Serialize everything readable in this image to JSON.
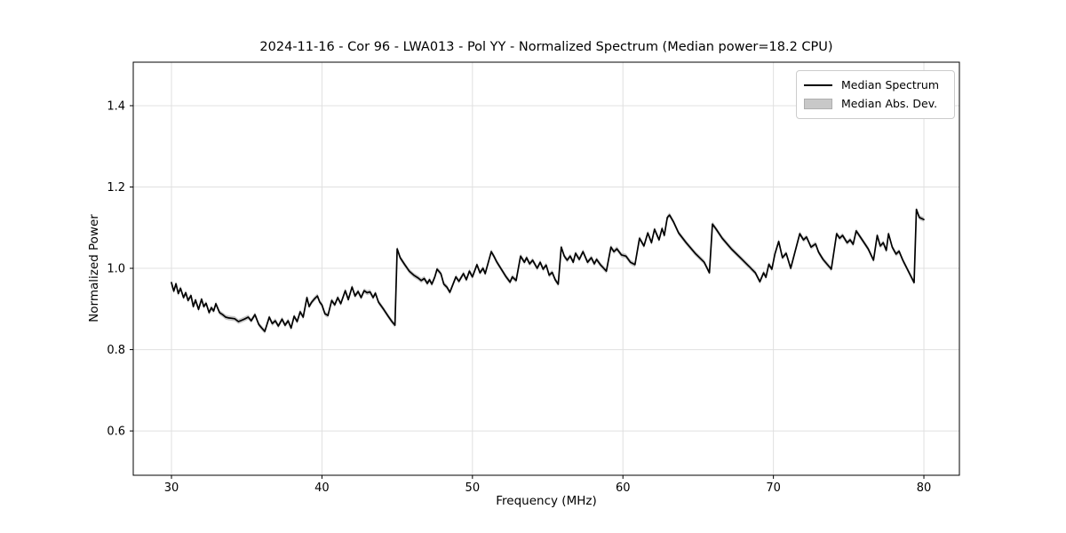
{
  "figure": {
    "title": "2024-11-16 - Cor 96 - LWA013 - Pol YY - Normalized Spectrum (Median power=18.2 CPU)",
    "background": "#ffffff"
  },
  "chart_data": {
    "type": "line",
    "title": "2024-11-16 - Cor 96 - LWA013 - Pol YY - Normalized Spectrum (Median power=18.2 CPU)",
    "xlabel": "Frequency (MHz)",
    "ylabel": "Normalized Power",
    "xlim": [
      27.46,
      82.36
    ],
    "ylim": [
      0.491,
      1.507
    ],
    "xtick_values": [
      30,
      40,
      50,
      60,
      70,
      80
    ],
    "xtick_labels": [
      "30",
      "40",
      "50",
      "60",
      "70",
      "80"
    ],
    "ytick_values": [
      0.6,
      0.8,
      1.0,
      1.2,
      1.4
    ],
    "ytick_labels": [
      "0.6",
      "0.8",
      "1.0",
      "1.2",
      "1.4"
    ],
    "grid": true,
    "grid_color": "#e0e0e0",
    "spine_color": "#000000",
    "line_color": "#000000",
    "band_color": "#c8c8c8",
    "band_halfwidth": 0.006,
    "legend_position": "top-right",
    "legend": [
      {
        "label": "Median Spectrum",
        "type": "line",
        "color": "#000000"
      },
      {
        "label": "Median Abs. Dev.",
        "type": "patch",
        "color": "#c8c8c8"
      }
    ],
    "series": [
      {
        "name": "Median Spectrum",
        "points": [
          [
            30.0,
            0.965
          ],
          [
            30.15,
            0.944
          ],
          [
            30.3,
            0.962
          ],
          [
            30.45,
            0.938
          ],
          [
            30.6,
            0.951
          ],
          [
            30.8,
            0.928
          ],
          [
            30.95,
            0.94
          ],
          [
            31.1,
            0.921
          ],
          [
            31.3,
            0.933
          ],
          [
            31.45,
            0.906
          ],
          [
            31.6,
            0.922
          ],
          [
            31.8,
            0.899
          ],
          [
            32.0,
            0.924
          ],
          [
            32.15,
            0.906
          ],
          [
            32.3,
            0.914
          ],
          [
            32.5,
            0.891
          ],
          [
            32.65,
            0.903
          ],
          [
            32.8,
            0.895
          ],
          [
            32.95,
            0.913
          ],
          [
            33.2,
            0.891
          ],
          [
            33.4,
            0.886
          ],
          [
            33.6,
            0.88
          ],
          [
            33.8,
            0.878
          ],
          [
            34.0,
            0.877
          ],
          [
            34.2,
            0.876
          ],
          [
            34.45,
            0.869
          ],
          [
            34.65,
            0.872
          ],
          [
            34.9,
            0.876
          ],
          [
            35.1,
            0.88
          ],
          [
            35.3,
            0.871
          ],
          [
            35.55,
            0.886
          ],
          [
            35.8,
            0.862
          ],
          [
            36.0,
            0.853
          ],
          [
            36.2,
            0.845
          ],
          [
            36.5,
            0.88
          ],
          [
            36.7,
            0.864
          ],
          [
            36.9,
            0.871
          ],
          [
            37.1,
            0.858
          ],
          [
            37.35,
            0.875
          ],
          [
            37.55,
            0.86
          ],
          [
            37.75,
            0.871
          ],
          [
            37.95,
            0.853
          ],
          [
            38.15,
            0.882
          ],
          [
            38.35,
            0.869
          ],
          [
            38.55,
            0.893
          ],
          [
            38.75,
            0.88
          ],
          [
            39.0,
            0.928
          ],
          [
            39.15,
            0.906
          ],
          [
            39.3,
            0.916
          ],
          [
            39.5,
            0.925
          ],
          [
            39.7,
            0.932
          ],
          [
            39.85,
            0.917
          ],
          [
            40.0,
            0.91
          ],
          [
            40.2,
            0.888
          ],
          [
            40.4,
            0.884
          ],
          [
            40.65,
            0.921
          ],
          [
            40.85,
            0.91
          ],
          [
            41.05,
            0.928
          ],
          [
            41.25,
            0.913
          ],
          [
            41.55,
            0.945
          ],
          [
            41.75,
            0.923
          ],
          [
            42.0,
            0.954
          ],
          [
            42.2,
            0.932
          ],
          [
            42.4,
            0.943
          ],
          [
            42.6,
            0.928
          ],
          [
            42.8,
            0.945
          ],
          [
            43.0,
            0.94
          ],
          [
            43.2,
            0.942
          ],
          [
            43.4,
            0.928
          ],
          [
            43.55,
            0.939
          ],
          [
            43.75,
            0.917
          ],
          [
            44.1,
            0.899
          ],
          [
            44.4,
            0.882
          ],
          [
            44.65,
            0.869
          ],
          [
            44.85,
            0.86
          ],
          [
            45.0,
            1.048
          ],
          [
            45.2,
            1.026
          ],
          [
            45.5,
            1.009
          ],
          [
            45.8,
            0.993
          ],
          [
            46.1,
            0.983
          ],
          [
            46.4,
            0.976
          ],
          [
            46.6,
            0.97
          ],
          [
            46.8,
            0.975
          ],
          [
            47.0,
            0.963
          ],
          [
            47.15,
            0.972
          ],
          [
            47.3,
            0.961
          ],
          [
            47.5,
            0.979
          ],
          [
            47.65,
            0.998
          ],
          [
            47.9,
            0.987
          ],
          [
            48.1,
            0.961
          ],
          [
            48.3,
            0.954
          ],
          [
            48.5,
            0.941
          ],
          [
            48.9,
            0.979
          ],
          [
            49.1,
            0.968
          ],
          [
            49.4,
            0.987
          ],
          [
            49.6,
            0.972
          ],
          [
            49.8,
            0.993
          ],
          [
            50.0,
            0.979
          ],
          [
            50.3,
            1.009
          ],
          [
            50.5,
            0.989
          ],
          [
            50.7,
            1.0
          ],
          [
            50.85,
            0.987
          ],
          [
            51.25,
            1.041
          ],
          [
            51.45,
            1.028
          ],
          [
            51.6,
            1.017
          ],
          [
            51.8,
            1.005
          ],
          [
            52.0,
            0.993
          ],
          [
            52.2,
            0.981
          ],
          [
            52.5,
            0.966
          ],
          [
            52.65,
            0.979
          ],
          [
            52.9,
            0.97
          ],
          [
            53.2,
            1.03
          ],
          [
            53.45,
            1.015
          ],
          [
            53.6,
            1.026
          ],
          [
            53.8,
            1.011
          ],
          [
            54.0,
            1.02
          ],
          [
            54.3,
            1.0
          ],
          [
            54.5,
            1.015
          ],
          [
            54.7,
            0.998
          ],
          [
            54.9,
            1.008
          ],
          [
            55.1,
            0.983
          ],
          [
            55.3,
            0.99
          ],
          [
            55.5,
            0.972
          ],
          [
            55.7,
            0.961
          ],
          [
            55.9,
            1.052
          ],
          [
            56.1,
            1.03
          ],
          [
            56.3,
            1.02
          ],
          [
            56.5,
            1.03
          ],
          [
            56.7,
            1.015
          ],
          [
            56.85,
            1.037
          ],
          [
            57.1,
            1.022
          ],
          [
            57.35,
            1.041
          ],
          [
            57.65,
            1.015
          ],
          [
            57.9,
            1.026
          ],
          [
            58.1,
            1.011
          ],
          [
            58.25,
            1.022
          ],
          [
            58.5,
            1.009
          ],
          [
            58.9,
            0.993
          ],
          [
            59.2,
            1.052
          ],
          [
            59.4,
            1.041
          ],
          [
            59.6,
            1.048
          ],
          [
            59.9,
            1.033
          ],
          [
            60.2,
            1.03
          ],
          [
            60.5,
            1.015
          ],
          [
            60.8,
            1.009
          ],
          [
            61.1,
            1.074
          ],
          [
            61.4,
            1.055
          ],
          [
            61.65,
            1.087
          ],
          [
            61.9,
            1.063
          ],
          [
            62.1,
            1.096
          ],
          [
            62.4,
            1.07
          ],
          [
            62.6,
            1.098
          ],
          [
            62.75,
            1.081
          ],
          [
            62.95,
            1.125
          ],
          [
            63.1,
            1.131
          ],
          [
            63.35,
            1.115
          ],
          [
            63.7,
            1.087
          ],
          [
            64.2,
            1.063
          ],
          [
            64.8,
            1.037
          ],
          [
            65.4,
            1.015
          ],
          [
            65.75,
            0.989
          ],
          [
            65.95,
            1.109
          ],
          [
            66.2,
            1.096
          ],
          [
            66.6,
            1.074
          ],
          [
            67.2,
            1.048
          ],
          [
            67.8,
            1.026
          ],
          [
            68.4,
            1.004
          ],
          [
            68.8,
            0.989
          ],
          [
            69.1,
            0.967
          ],
          [
            69.35,
            0.989
          ],
          [
            69.5,
            0.978
          ],
          [
            69.7,
            1.01
          ],
          [
            69.9,
            0.998
          ],
          [
            70.1,
            1.035
          ],
          [
            70.35,
            1.066
          ],
          [
            70.6,
            1.026
          ],
          [
            70.85,
            1.037
          ],
          [
            71.15,
            1.0
          ],
          [
            71.75,
            1.085
          ],
          [
            72.0,
            1.07
          ],
          [
            72.2,
            1.077
          ],
          [
            72.5,
            1.052
          ],
          [
            72.8,
            1.06
          ],
          [
            73.0,
            1.04
          ],
          [
            73.3,
            1.022
          ],
          [
            73.85,
            0.998
          ],
          [
            74.2,
            1.085
          ],
          [
            74.4,
            1.074
          ],
          [
            74.6,
            1.081
          ],
          [
            74.9,
            1.063
          ],
          [
            75.1,
            1.07
          ],
          [
            75.3,
            1.059
          ],
          [
            75.5,
            1.092
          ],
          [
            75.9,
            1.07
          ],
          [
            76.3,
            1.048
          ],
          [
            76.65,
            1.02
          ],
          [
            76.9,
            1.081
          ],
          [
            77.1,
            1.055
          ],
          [
            77.3,
            1.063
          ],
          [
            77.5,
            1.044
          ],
          [
            77.65,
            1.085
          ],
          [
            77.9,
            1.052
          ],
          [
            78.15,
            1.035
          ],
          [
            78.35,
            1.042
          ],
          [
            78.6,
            1.02
          ],
          [
            78.9,
            0.998
          ],
          [
            79.1,
            0.983
          ],
          [
            79.35,
            0.965
          ],
          [
            79.5,
            1.145
          ],
          [
            79.7,
            1.125
          ],
          [
            80.0,
            1.12
          ]
        ]
      }
    ]
  }
}
